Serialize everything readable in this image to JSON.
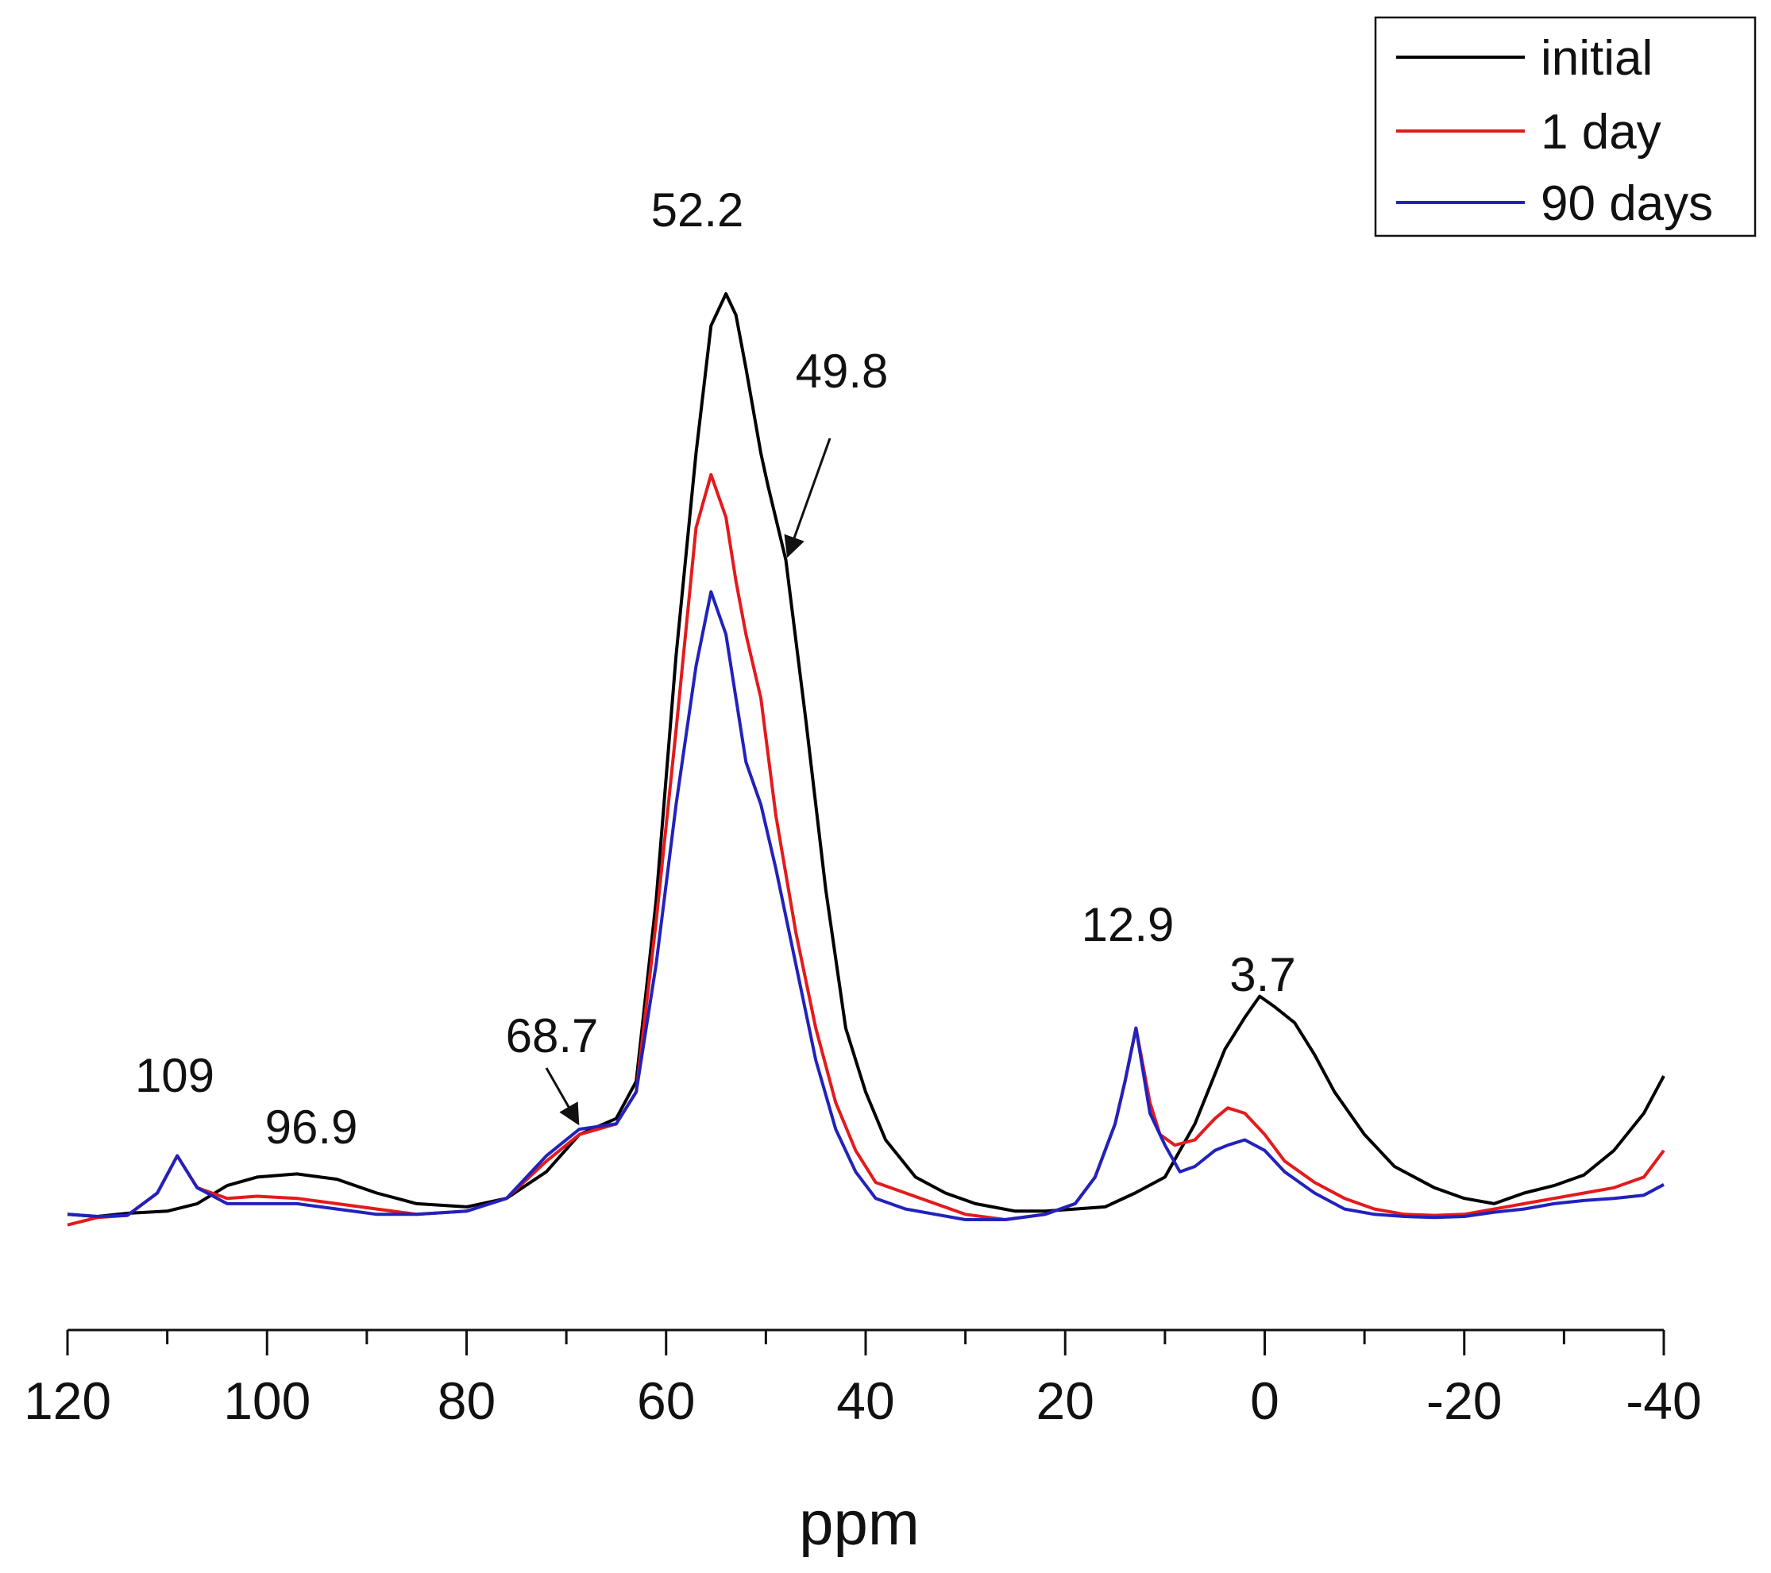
{
  "chart_data": {
    "type": "line",
    "title": "",
    "xlabel": "ppm",
    "ylabel": "",
    "xlim": [
      120,
      -40
    ],
    "ylim": [
      0,
      100
    ],
    "x_ticks": [
      120,
      100,
      80,
      60,
      40,
      20,
      0,
      -20,
      -40
    ],
    "x_tick_labels": [
      "120",
      "100",
      "80",
      "60",
      "40",
      "20",
      "0",
      "-20",
      "-40"
    ],
    "x_minor_ticks": [
      110,
      90,
      70,
      50,
      30,
      10,
      -10,
      -30
    ],
    "grid": false,
    "legend_position": "top-right",
    "series": [
      {
        "name": "initial",
        "color": "#000000",
        "x": [
          120,
          117,
          114,
          110,
          107,
          104,
          101,
          97,
          93,
          89,
          85,
          80,
          76,
          72,
          68.7,
          65,
          63,
          61,
          59,
          57,
          55.5,
          54,
          53,
          52,
          50.5,
          49.8,
          48,
          46,
          44,
          42,
          40,
          38,
          35,
          32,
          29,
          25,
          22,
          19,
          16,
          13,
          10,
          7,
          4,
          2,
          0.5,
          -1,
          -3,
          -5,
          -7,
          -10,
          -13,
          -17,
          -20,
          -23,
          -26,
          -29,
          -32,
          -35,
          -38,
          -40
        ],
        "values": [
          0.5,
          0.3,
          0.6,
          0.8,
          1.5,
          3.2,
          4.0,
          4.3,
          3.8,
          2.5,
          1.5,
          1.2,
          2.0,
          4.5,
          8.0,
          9.5,
          13,
          30,
          53,
          72,
          84,
          87,
          85,
          80,
          72,
          69,
          62,
          47,
          31,
          18,
          12,
          7.5,
          4.0,
          2.5,
          1.5,
          0.8,
          0.8,
          1.0,
          1.2,
          2.5,
          4.0,
          9.0,
          16,
          19,
          21,
          20,
          18.5,
          15.5,
          12,
          8,
          5,
          3,
          2,
          1.5,
          2.5,
          3.2,
          4.2,
          6.5,
          10,
          13.5
        ]
      },
      {
        "name": "1 day",
        "color": "#e41a1c",
        "x": [
          120,
          117,
          114,
          111,
          109,
          107,
          104,
          101,
          97,
          93,
          89,
          85,
          80,
          76,
          72,
          68.7,
          65,
          63,
          61,
          59,
          57,
          55.5,
          54,
          53,
          52,
          50.5,
          49,
          47,
          45,
          43,
          41,
          39,
          36,
          33,
          30,
          26,
          22,
          19,
          17,
          15,
          14,
          12.9,
          11.5,
          10.5,
          9,
          7,
          5,
          3.7,
          2,
          0,
          -2,
          -5,
          -8,
          -11,
          -14,
          -17,
          -20,
          -23,
          -26,
          -29,
          -32,
          -35,
          -38,
          -40
        ],
        "values": [
          -0.5,
          0.2,
          0.4,
          2.5,
          6.0,
          3.0,
          2.0,
          2.2,
          2.0,
          1.5,
          1.0,
          0.5,
          0.8,
          2.0,
          5.5,
          8.0,
          9.0,
          12,
          28,
          46,
          65,
          70,
          66,
          60,
          55,
          49,
          38,
          27,
          18,
          11,
          6.5,
          3.5,
          2.5,
          1.5,
          0.5,
          0.0,
          0.5,
          1.5,
          4.0,
          9.0,
          13,
          18,
          11,
          8.0,
          7.0,
          7.5,
          9.5,
          10.5,
          10,
          8,
          5.5,
          3.5,
          2.0,
          1.0,
          0.5,
          0.4,
          0.5,
          1.0,
          1.5,
          2.0,
          2.5,
          3.0,
          4.0,
          6.5
        ]
      },
      {
        "name": "90 days",
        "color": "#2222bb",
        "x": [
          120,
          117,
          114,
          111,
          109,
          107,
          104,
          101,
          97,
          93,
          89,
          85,
          80,
          76,
          72,
          68.7,
          65,
          63,
          61,
          59,
          57,
          55.5,
          54,
          53,
          52,
          50.5,
          49,
          47,
          45,
          43,
          41,
          39,
          36,
          33,
          30,
          26,
          22,
          19,
          17,
          15,
          14,
          12.9,
          11.5,
          10,
          8.5,
          7,
          5,
          3.7,
          2,
          0,
          -2,
          -5,
          -8,
          -11,
          -14,
          -17,
          -20,
          -23,
          -26,
          -29,
          -32,
          -35,
          -38,
          -40
        ],
        "values": [
          0.5,
          0.3,
          0.4,
          2.5,
          6.0,
          3.0,
          1.5,
          1.5,
          1.5,
          1.0,
          0.5,
          0.5,
          0.8,
          2.0,
          6.0,
          8.5,
          9.0,
          12,
          24,
          39,
          52,
          59,
          55,
          49,
          43,
          39,
          33,
          24,
          15,
          8.5,
          4.5,
          2.0,
          1.0,
          0.5,
          0.0,
          0.0,
          0.5,
          1.5,
          4.0,
          9.0,
          13,
          18,
          10,
          7.0,
          4.5,
          5.0,
          6.5,
          7.0,
          7.5,
          6.5,
          4.5,
          2.5,
          1.0,
          0.5,
          0.3,
          0.2,
          0.3,
          0.7,
          1.0,
          1.5,
          1.8,
          2.0,
          2.3,
          3.3
        ]
      }
    ],
    "annotations": [
      {
        "text": "52.2",
        "x": 52.2
      },
      {
        "text": "49.8",
        "x": 49.8,
        "arrow": true
      },
      {
        "text": "68.7",
        "x": 68.7,
        "arrow": true
      },
      {
        "text": "109",
        "x": 109
      },
      {
        "text": "96.9",
        "x": 96.9
      },
      {
        "text": "12.9",
        "x": 12.9
      },
      {
        "text": "3.7",
        "x": 3.7
      }
    ]
  }
}
